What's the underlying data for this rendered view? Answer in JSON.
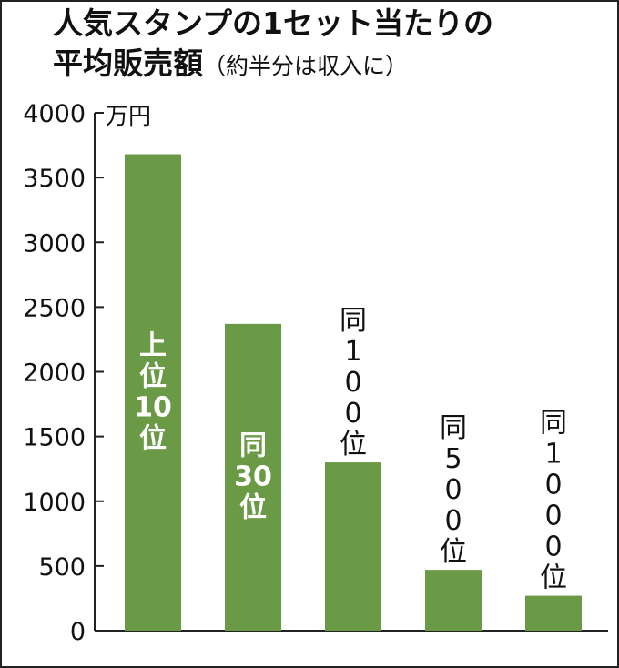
{
  "chart_data": {
    "type": "bar",
    "title": "人気スタンプの1セット当たりの",
    "title_line2": "平均販売額",
    "subtitle": "（約半分は収入に）",
    "unit": "万円",
    "ylim": [
      0,
      4000
    ],
    "yticks": [
      0,
      500,
      1000,
      1500,
      2000,
      2500,
      3000,
      3500,
      4000
    ],
    "bar_color": "#6b9a46",
    "categories": [
      "上位10位",
      "同30位",
      "同100位",
      "同500位",
      "同1000位"
    ],
    "bar_label_lines": [
      [
        "上",
        "位",
        "10",
        "位"
      ],
      [
        "同",
        "30",
        "位"
      ],
      [
        "同",
        "1",
        "0",
        "0",
        "位"
      ],
      [
        "同",
        "5",
        "0",
        "0",
        "位"
      ],
      [
        "同",
        "1",
        "0",
        "0",
        "0",
        "位"
      ]
    ],
    "label_inside": [
      true,
      true,
      false,
      false,
      false
    ],
    "values": [
      3680,
      2370,
      1300,
      470,
      270
    ]
  }
}
